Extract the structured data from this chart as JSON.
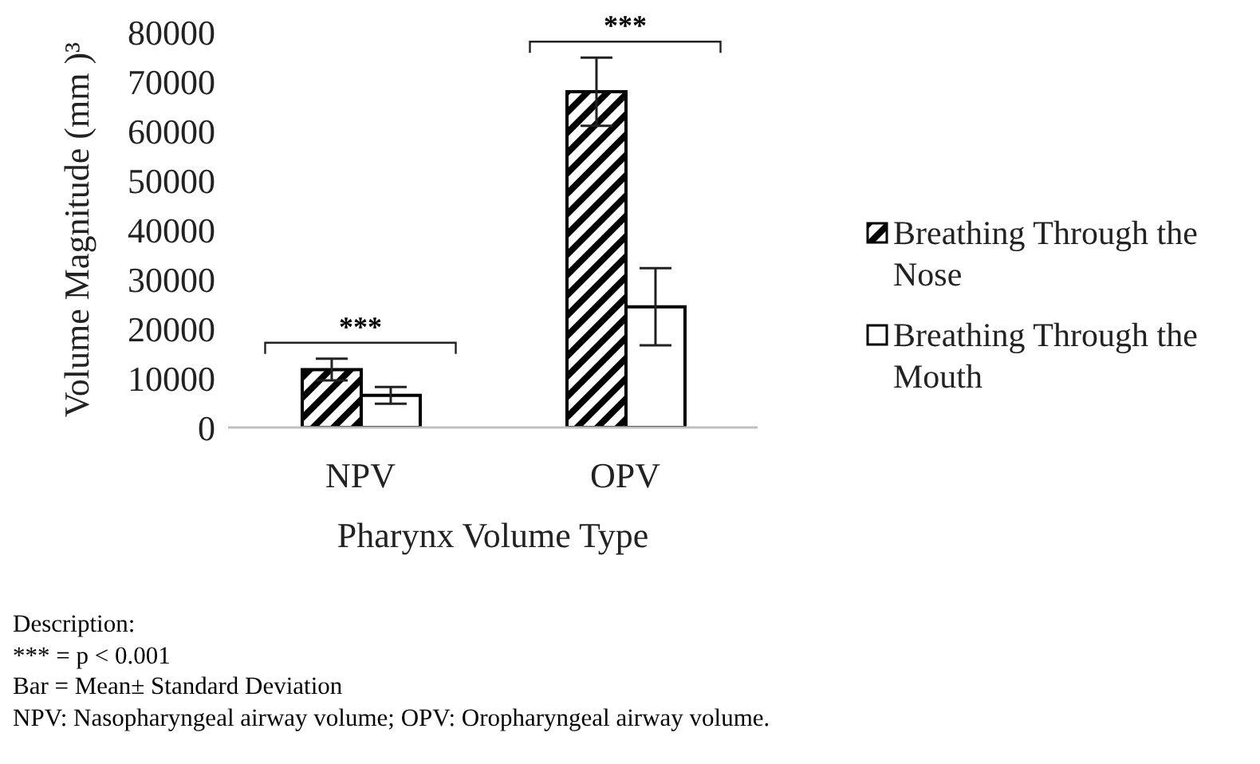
{
  "chart_data": {
    "type": "bar",
    "xlabel": "Pharynx Volume Type",
    "ylabel": "Volume Magnitude (mm )³",
    "categories": [
      "NPV",
      "OPV"
    ],
    "series": [
      {
        "name": "Breathing Through the Nose",
        "color": "#000000",
        "values": [
          11700,
          67900
        ],
        "errors": [
          2200,
          6900
        ]
      },
      {
        "name": "Breathing Through the Mouth",
        "color": "#ffffff",
        "values": [
          6500,
          24400
        ],
        "errors": [
          1700,
          7800
        ]
      }
    ],
    "ylim": [
      0,
      80000
    ],
    "yticks": [
      0,
      10000,
      20000,
      30000,
      40000,
      50000,
      60000,
      70000,
      80000
    ],
    "grid": false,
    "legend": "right",
    "annotations": [
      "***",
      "***",
      "Description:",
      "*** = p < 0.001",
      "Bar = Mean± Standard Deviation",
      "NPV: Nasopharyngeal airway volume; OPV: Oropharyngeal airway volume."
    ]
  }
}
